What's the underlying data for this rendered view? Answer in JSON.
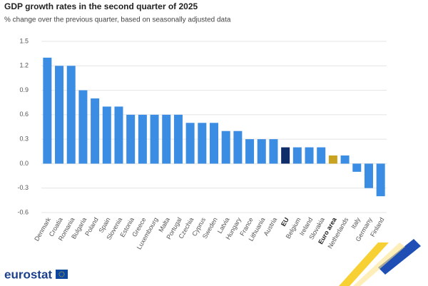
{
  "chart_data": {
    "type": "bar",
    "title": "GDP growth rates in the second quarter of 2025",
    "subtitle": "% change over the previous quarter, based on seasonally adjusted data",
    "categories": [
      "Denmark",
      "Croatia",
      "Romania",
      "Bulgaria",
      "Poland",
      "Spain",
      "Slovenia",
      "Estonia",
      "Greece",
      "Luxembourg",
      "Malta",
      "Portugal",
      "Czechia",
      "Cyprus",
      "Sweden",
      "Latvia",
      "Hungary",
      "France",
      "Lithuania",
      "Austria",
      "EU",
      "Belgium",
      "Ireland",
      "Slovakia",
      "Euro area",
      "Netherlands",
      "Italy",
      "Germany",
      "Finland"
    ],
    "values": [
      1.3,
      1.2,
      1.2,
      0.9,
      0.8,
      0.7,
      0.7,
      0.6,
      0.6,
      0.6,
      0.6,
      0.6,
      0.5,
      0.5,
      0.5,
      0.4,
      0.4,
      0.3,
      0.3,
      0.3,
      0.2,
      0.2,
      0.2,
      0.2,
      0.1,
      0.1,
      -0.1,
      -0.3,
      -0.4
    ],
    "color": "#3b8de3",
    "colors": [
      "#3b8de3",
      "#3b8de3",
      "#3b8de3",
      "#3b8de3",
      "#3b8de3",
      "#3b8de3",
      "#3b8de3",
      "#3b8de3",
      "#3b8de3",
      "#3b8de3",
      "#3b8de3",
      "#3b8de3",
      "#3b8de3",
      "#3b8de3",
      "#3b8de3",
      "#3b8de3",
      "#3b8de3",
      "#3b8de3",
      "#3b8de3",
      "#3b8de3",
      "#0f2d69",
      "#3b8de3",
      "#3b8de3",
      "#3b8de3",
      "#c9a222",
      "#3b8de3",
      "#3b8de3",
      "#3b8de3",
      "#3b8de3"
    ],
    "ylim": [
      -0.6,
      1.5
    ],
    "yticks": [
      -0.6,
      -0.3,
      {
        "value": 0,
        "label": "0.0"
      },
      0.3,
      0.6,
      0.9,
      1.2,
      1.5
    ],
    "grid": true
  },
  "footer": {
    "logo": "eurostat"
  }
}
